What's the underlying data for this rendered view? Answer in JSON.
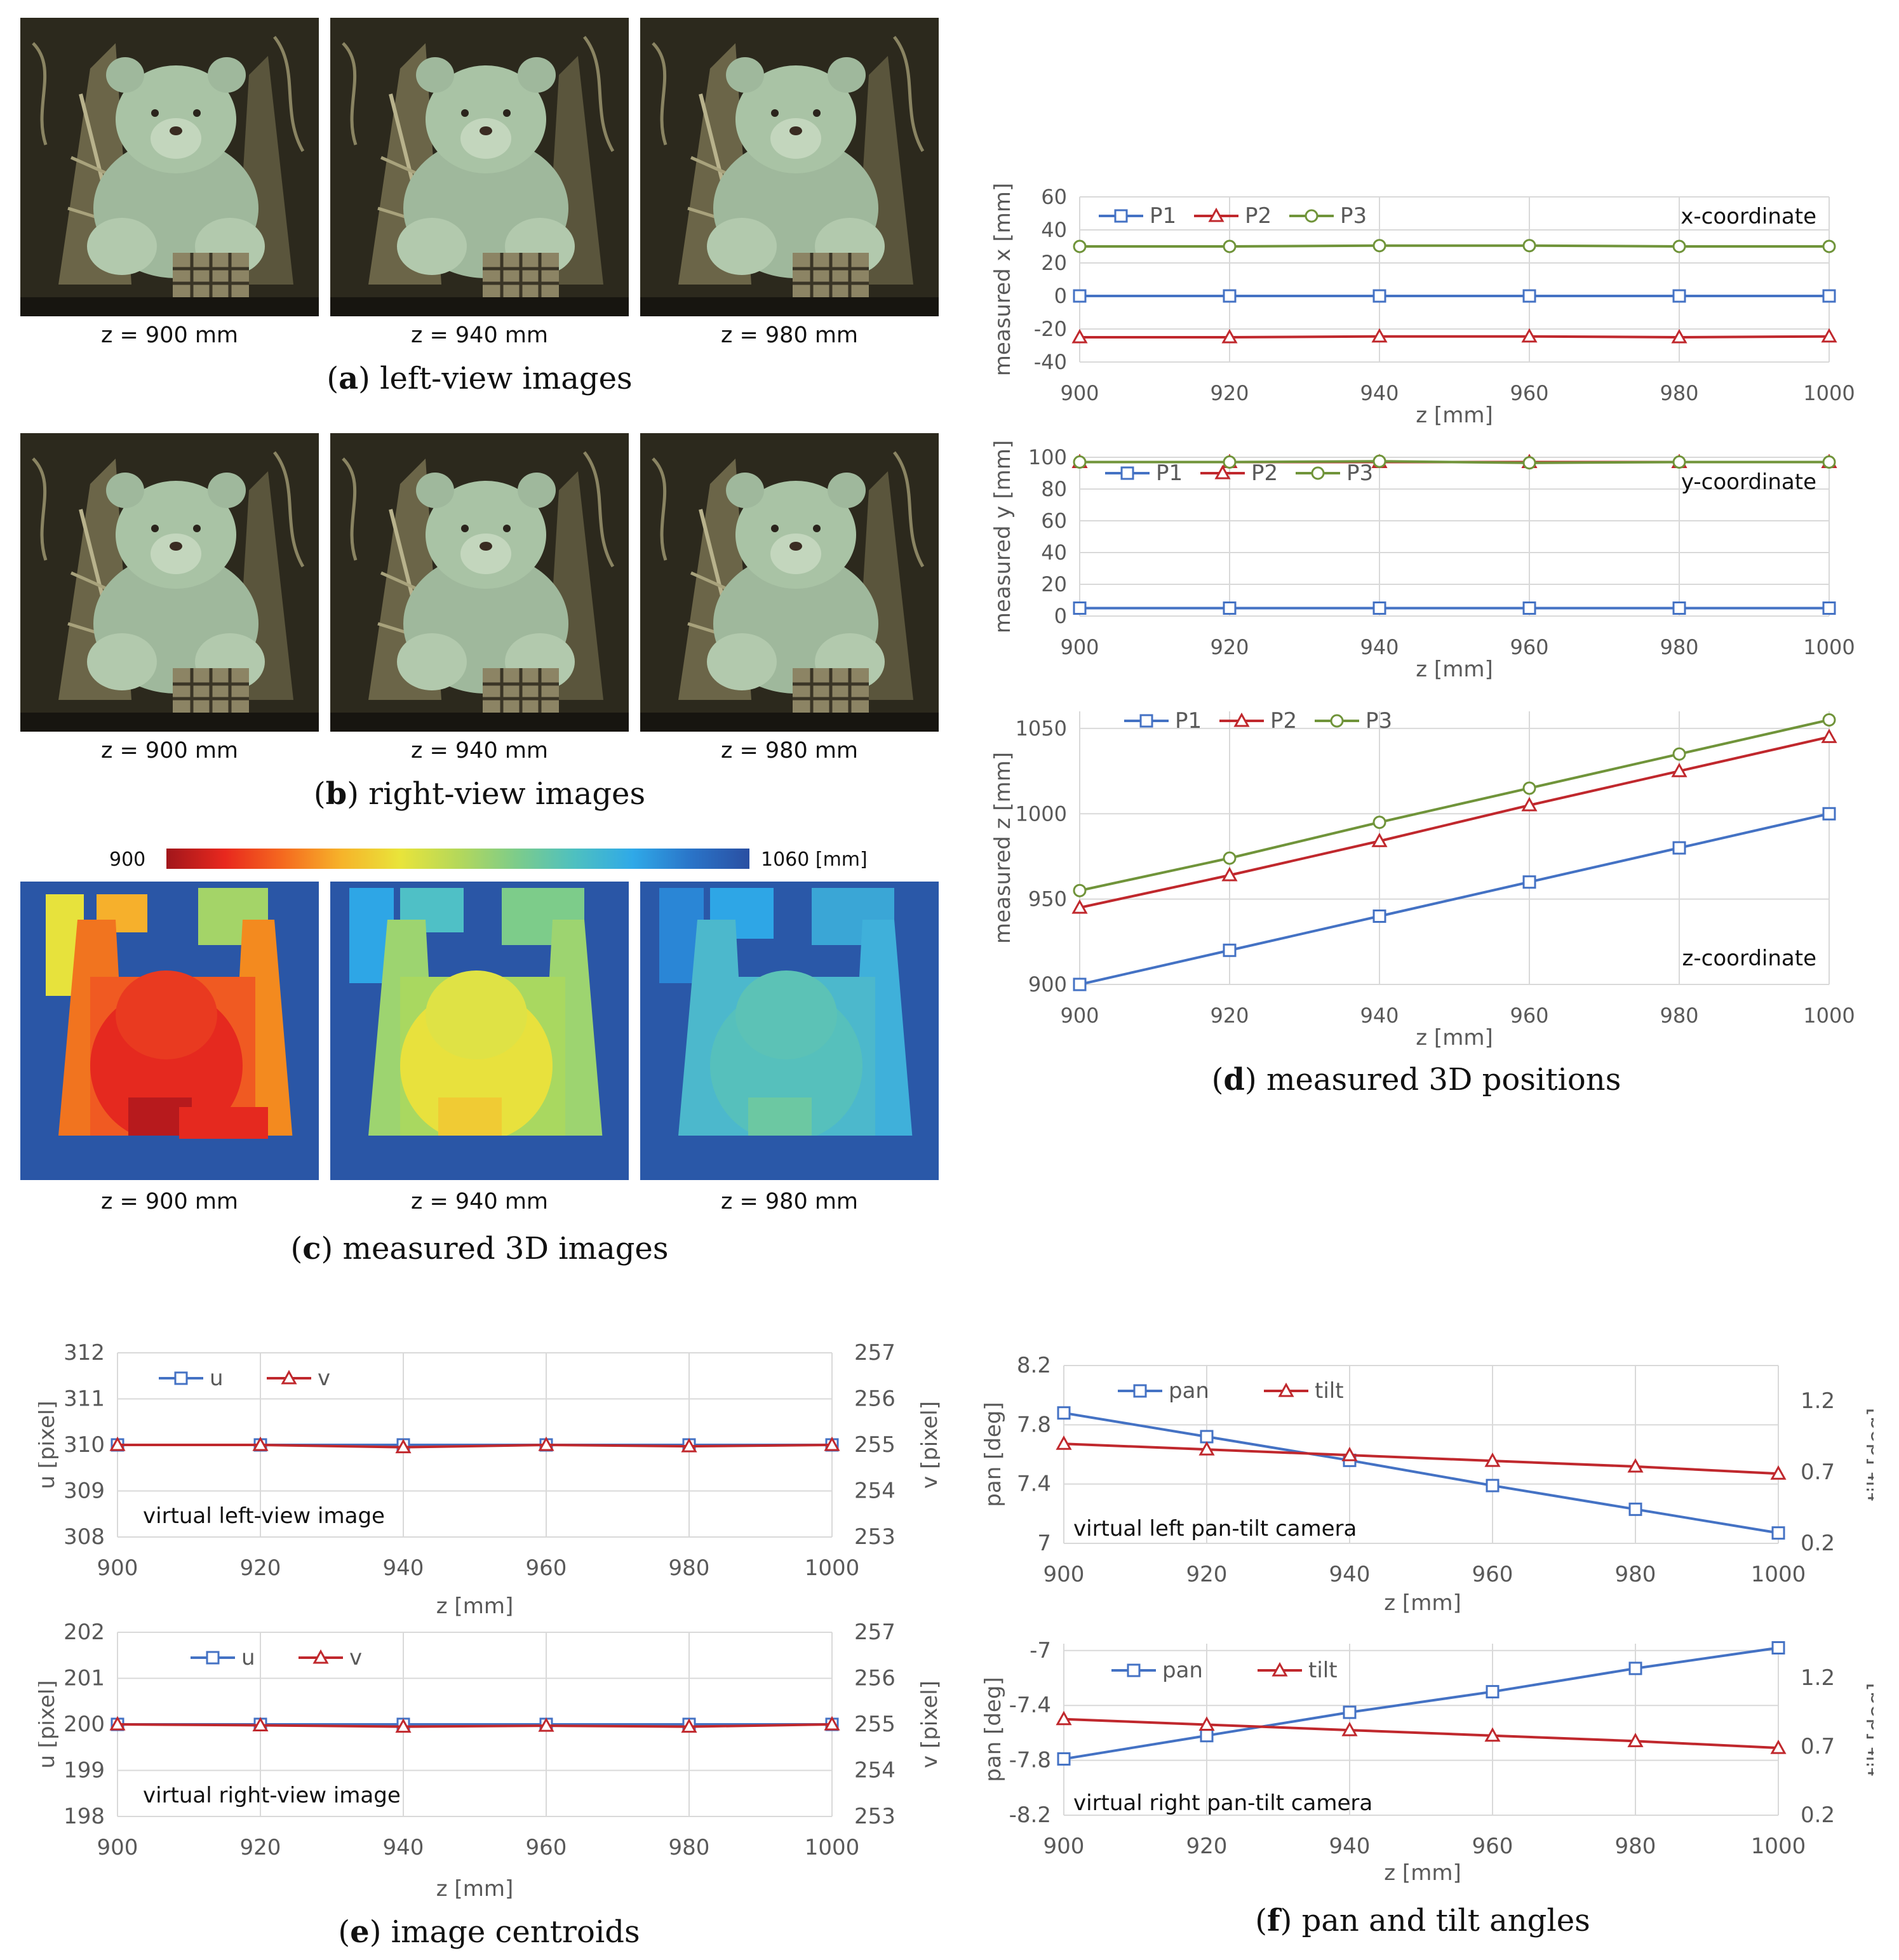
{
  "panels": {
    "a": {
      "letter": "a",
      "caption": "left-view images",
      "labels": [
        "z = 900 mm",
        "z = 940 mm",
        "z = 980 mm"
      ]
    },
    "b": {
      "letter": "b",
      "caption": "right-view images",
      "labels": [
        "z = 900 mm",
        "z = 940 mm",
        "z = 980 mm"
      ]
    },
    "c": {
      "letter": "c",
      "caption": "measured 3D images",
      "labels": [
        "z = 900 mm",
        "z = 940 mm",
        "z = 980 mm"
      ],
      "colorbar_min": "900",
      "colorbar_max": "1060 [mm]"
    },
    "d": {
      "letter": "d",
      "caption": "measured 3D positions"
    },
    "e": {
      "letter": "e",
      "caption": "image centroids"
    },
    "f": {
      "letter": "f",
      "caption": "pan and tilt angles"
    }
  },
  "colors": {
    "blue": "#4472c4",
    "red": "#c0282d",
    "green": "#70943a",
    "grid": "#d9d9d9",
    "axis_text": "#595959"
  },
  "chart_data": [
    {
      "id": "dx",
      "type": "line",
      "title": "x-coordinate",
      "xlabel": "z [mm]",
      "ylabel": "measured  x [mm]",
      "x": [
        900,
        920,
        940,
        960,
        980,
        1000
      ],
      "xticks": [
        "900",
        "920",
        "940",
        "960",
        "980",
        "1000"
      ],
      "ylim": [
        -40,
        60
      ],
      "yticks": [
        "-40",
        "-20",
        "0",
        "20",
        "40",
        "60"
      ],
      "series": [
        {
          "name": "P1",
          "marker": "square",
          "color": "#4472c4",
          "values": [
            0,
            0,
            0,
            0,
            0,
            0
          ]
        },
        {
          "name": "P2",
          "marker": "triangle",
          "color": "#c0282d",
          "values": [
            -25,
            -25,
            -24.5,
            -24.5,
            -25,
            -24.5
          ]
        },
        {
          "name": "P3",
          "marker": "circle",
          "color": "#70943a",
          "values": [
            30,
            30,
            30.5,
            30.5,
            30,
            30
          ]
        }
      ]
    },
    {
      "id": "dy",
      "type": "line",
      "title": "y-coordinate",
      "xlabel": "z [mm]",
      "ylabel": "measured  y [mm]",
      "x": [
        900,
        920,
        940,
        960,
        980,
        1000
      ],
      "xticks": [
        "900",
        "920",
        "940",
        "960",
        "980",
        "1000"
      ],
      "ylim": [
        0,
        100
      ],
      "yticks": [
        "0",
        "20",
        "40",
        "60",
        "80",
        "100"
      ],
      "series": [
        {
          "name": "P1",
          "marker": "square",
          "color": "#4472c4",
          "values": [
            5,
            5,
            5,
            5,
            5,
            5
          ]
        },
        {
          "name": "P2",
          "marker": "triangle",
          "color": "#c0282d",
          "values": [
            97,
            97,
            97,
            97,
            97,
            97
          ]
        },
        {
          "name": "P3",
          "marker": "circle",
          "color": "#70943a",
          "values": [
            97,
            97,
            97.5,
            96.5,
            97,
            97
          ]
        }
      ]
    },
    {
      "id": "dz",
      "type": "line",
      "title": "z-coordinate",
      "xlabel": "z [mm]",
      "ylabel": "measured  z [mm]",
      "x": [
        900,
        920,
        940,
        960,
        980,
        1000
      ],
      "xticks": [
        "900",
        "920",
        "940",
        "960",
        "980",
        "1000"
      ],
      "ylim": [
        900,
        1060
      ],
      "yticks": [
        "900",
        "950",
        "1000",
        "1050"
      ],
      "series": [
        {
          "name": "P1",
          "marker": "square",
          "color": "#4472c4",
          "values": [
            900,
            920,
            940,
            960,
            980,
            1000
          ]
        },
        {
          "name": "P2",
          "marker": "triangle",
          "color": "#c0282d",
          "values": [
            945,
            964,
            984,
            1005,
            1025,
            1045
          ]
        },
        {
          "name": "P3",
          "marker": "circle",
          "color": "#70943a",
          "values": [
            955,
            974,
            995,
            1015,
            1035,
            1055
          ]
        }
      ]
    },
    {
      "id": "eL",
      "type": "line",
      "title": "virtual left-view image",
      "xlabel": "z [mm]",
      "ylabel": "u [pixel]",
      "y2label": "v [pixel]",
      "x": [
        900,
        920,
        940,
        960,
        980,
        1000
      ],
      "xticks": [
        "900",
        "920",
        "940",
        "960",
        "980",
        "1000"
      ],
      "ylim": [
        308,
        312
      ],
      "yticks": [
        "308",
        "309",
        "310",
        "311",
        "312"
      ],
      "y2lim": [
        253,
        257
      ],
      "y2ticks": [
        "253",
        "254",
        "255",
        "256",
        "257"
      ],
      "series": [
        {
          "name": "u",
          "marker": "square",
          "color": "#4472c4",
          "axis": "left",
          "values": [
            310,
            310,
            310,
            310,
            310,
            310
          ]
        },
        {
          "name": "v",
          "marker": "triangle",
          "color": "#c0282d",
          "axis": "right",
          "values": [
            255,
            255,
            254.95,
            255,
            254.97,
            255
          ]
        }
      ]
    },
    {
      "id": "eR",
      "type": "line",
      "title": "virtual right-view image",
      "xlabel": "z [mm]",
      "ylabel": "u [pixel]",
      "y2label": "v [pixel]",
      "x": [
        900,
        920,
        940,
        960,
        980,
        1000
      ],
      "xticks": [
        "900",
        "920",
        "940",
        "960",
        "980",
        "1000"
      ],
      "ylim": [
        198,
        202
      ],
      "yticks": [
        "198",
        "199",
        "200",
        "201",
        "202"
      ],
      "y2lim": [
        253,
        257
      ],
      "y2ticks": [
        "253",
        "254",
        "255",
        "256",
        "257"
      ],
      "series": [
        {
          "name": "u",
          "marker": "square",
          "color": "#4472c4",
          "axis": "left",
          "values": [
            200,
            200,
            200,
            200,
            200,
            200
          ]
        },
        {
          "name": "v",
          "marker": "triangle",
          "color": "#c0282d",
          "axis": "right",
          "values": [
            255,
            254.98,
            254.95,
            254.97,
            254.95,
            255
          ]
        }
      ]
    },
    {
      "id": "fL",
      "type": "line",
      "title": "virtual left pan-tilt camera",
      "xlabel": "z [mm]",
      "ylabel": "pan [deg]",
      "y2label": "tilt [deg]",
      "x": [
        900,
        920,
        940,
        960,
        980,
        1000
      ],
      "xticks": [
        "900",
        "920",
        "940",
        "960",
        "980",
        "1000"
      ],
      "ylim": [
        7,
        8.2
      ],
      "yticks": [
        "7",
        "7.4",
        "7.8",
        "8.2"
      ],
      "y2lim": [
        0.2,
        1.45
      ],
      "y2ticks": [
        "0.2",
        "0.7",
        "1.2"
      ],
      "series": [
        {
          "name": "pan",
          "marker": "square",
          "color": "#4472c4",
          "axis": "left",
          "values": [
            7.88,
            7.72,
            7.56,
            7.39,
            7.23,
            7.07
          ]
        },
        {
          "name": "tilt",
          "marker": "triangle",
          "color": "#c0282d",
          "axis": "right",
          "values": [
            0.9,
            0.86,
            0.82,
            0.78,
            0.74,
            0.69
          ]
        }
      ]
    },
    {
      "id": "fR",
      "type": "line",
      "title": "virtual right pan-tilt camera",
      "xlabel": "z [mm]",
      "ylabel": "pan [deg]",
      "y2label": "tilt [deg]",
      "x": [
        900,
        920,
        940,
        960,
        980,
        1000
      ],
      "xticks": [
        "900",
        "920",
        "940",
        "960",
        "980",
        "1000"
      ],
      "ylim": [
        -8.2,
        -6.95
      ],
      "yticks": [
        "-8.2",
        "-7.8",
        "-7.4",
        "-7"
      ],
      "y2lim": [
        0.2,
        1.45
      ],
      "y2ticks": [
        "0.2",
        "0.7",
        "1.2"
      ],
      "series": [
        {
          "name": "pan",
          "marker": "square",
          "color": "#4472c4",
          "axis": "left",
          "values": [
            -7.79,
            -7.62,
            -7.45,
            -7.3,
            -7.13,
            -6.98
          ]
        },
        {
          "name": "tilt",
          "marker": "triangle",
          "color": "#c0282d",
          "axis": "right",
          "values": [
            0.9,
            0.86,
            0.82,
            0.78,
            0.74,
            0.69
          ]
        }
      ]
    }
  ]
}
